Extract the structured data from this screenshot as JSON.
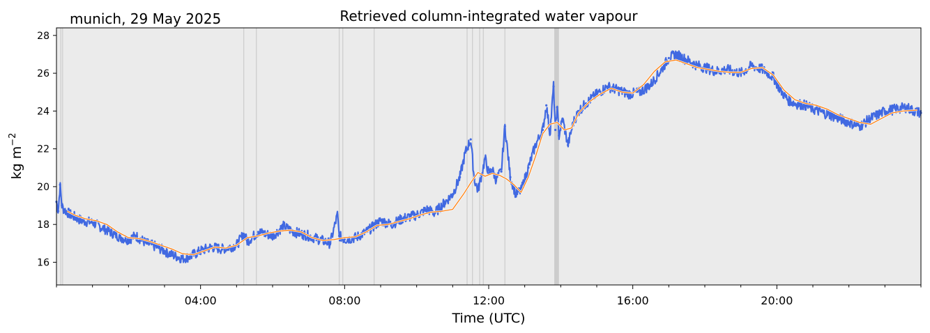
{
  "chart_data": {
    "type": "line",
    "title": "Retrieved column-integrated water vapour",
    "location_label": "munich, 29 May 2025",
    "xlabel": "Time (UTC)",
    "ylabel": "kg m",
    "ylabel_sup": "−2",
    "xlim_hours": [
      0,
      24
    ],
    "ylim": [
      14.8,
      28.4
    ],
    "y_ticks": [
      16,
      18,
      20,
      22,
      24,
      26,
      28
    ],
    "x_ticks": [
      {
        "hour": 4,
        "label": "04:00"
      },
      {
        "hour": 8,
        "label": "08:00"
      },
      {
        "hour": 12,
        "label": "12:00"
      },
      {
        "hour": 16,
        "label": "16:00"
      },
      {
        "hour": 20,
        "label": "20:00"
      }
    ],
    "grid": false,
    "colors": {
      "background": "#ebebeb",
      "raw_series": "#4169e1",
      "smoothed_series": "#ff7f0e",
      "gap_band": "#cccccc"
    },
    "gap_hours": [
      0.12,
      0.17,
      5.2,
      5.55,
      7.85,
      7.95,
      8.82,
      11.4,
      11.55,
      11.75,
      11.85,
      12.45
    ],
    "gap_band_hours": [
      13.82,
      13.95
    ],
    "series": [
      {
        "kind": "raw",
        "hours": [
          0.0,
          0.05,
          0.1,
          0.15,
          0.2,
          0.4,
          0.7,
          1.0,
          1.3,
          1.6,
          1.8,
          2.0,
          2.2,
          2.5,
          2.8,
          3.0,
          3.2,
          3.5,
          3.7,
          4.0,
          4.3,
          4.6,
          5.0,
          5.2,
          5.3,
          5.6,
          6.0,
          6.3,
          6.6,
          7.0,
          7.3,
          7.6,
          7.8,
          7.85,
          8.0,
          8.3,
          8.6,
          9.0,
          9.3,
          9.6,
          10.0,
          10.3,
          10.5,
          10.8,
          11.0,
          11.2,
          11.35,
          11.5,
          11.6,
          11.7,
          11.8,
          11.9,
          12.0,
          12.1,
          12.2,
          12.35,
          12.45,
          12.6,
          12.75,
          12.9,
          13.1,
          13.3,
          13.5,
          13.6,
          13.7,
          13.8,
          13.85,
          13.9,
          13.95,
          14.05,
          14.2,
          14.35,
          14.5,
          14.7,
          15.0,
          15.3,
          15.6,
          15.9,
          16.2,
          16.5,
          16.8,
          17.0,
          17.2,
          17.5,
          17.8,
          18.0,
          18.3,
          18.6,
          19.0,
          19.3,
          19.6,
          19.9,
          20.1,
          20.3,
          20.5,
          20.8,
          21.0,
          21.3,
          21.6,
          22.0,
          22.3,
          22.6,
          23.0,
          23.3,
          23.6,
          23.8,
          24.0
        ],
        "values": [
          19.2,
          18.7,
          20.1,
          19.0,
          18.8,
          18.5,
          18.2,
          18.1,
          17.8,
          17.5,
          17.3,
          17.2,
          17.4,
          17.0,
          16.8,
          16.6,
          16.4,
          16.2,
          16.3,
          16.6,
          16.8,
          16.7,
          16.9,
          17.5,
          17.1,
          17.6,
          17.4,
          17.9,
          17.6,
          17.4,
          17.2,
          17.0,
          18.5,
          17.4,
          17.2,
          17.3,
          17.6,
          18.2,
          18.0,
          18.3,
          18.5,
          18.8,
          18.6,
          19.2,
          19.6,
          20.5,
          21.8,
          22.5,
          20.4,
          19.8,
          20.6,
          21.5,
          20.7,
          20.9,
          20.4,
          20.8,
          23.2,
          20.5,
          19.6,
          19.8,
          21.0,
          22.2,
          23.0,
          24.3,
          22.8,
          25.3,
          23.0,
          24.2,
          22.7,
          23.6,
          22.2,
          23.4,
          24.0,
          24.4,
          24.9,
          25.3,
          25.1,
          24.9,
          25.0,
          25.4,
          26.2,
          26.8,
          27.0,
          26.7,
          26.4,
          26.3,
          26.1,
          26.2,
          26.0,
          26.4,
          26.2,
          25.8,
          25.1,
          24.6,
          24.4,
          24.3,
          24.1,
          23.9,
          23.7,
          23.4,
          23.2,
          23.6,
          24.0,
          24.1,
          24.2,
          24.0,
          23.9
        ]
      },
      {
        "kind": "smoothed",
        "hours": [
          0.3,
          0.5,
          0.8,
          1.1,
          1.4,
          1.7,
          2.0,
          2.3,
          2.6,
          2.9,
          3.2,
          3.5,
          3.8,
          4.1,
          4.4,
          4.7,
          5.0,
          5.3,
          5.6,
          5.9,
          6.2,
          6.5,
          6.8,
          7.1,
          7.4,
          7.7,
          8.0,
          8.3,
          8.6,
          8.9,
          9.2,
          9.5,
          9.8,
          10.1,
          10.4,
          10.7,
          11.0,
          11.3,
          11.5,
          11.7,
          11.9,
          12.1,
          12.3,
          12.5,
          12.7,
          12.9,
          13.1,
          13.3,
          13.5,
          13.7,
          13.9,
          14.1,
          14.3,
          14.5,
          14.8,
          15.1,
          15.4,
          15.7,
          16.0,
          16.3,
          16.6,
          16.9,
          17.2,
          17.5,
          17.8,
          18.1,
          18.4,
          18.7,
          19.0,
          19.3,
          19.6,
          19.9,
          20.2,
          20.5,
          20.8,
          21.1,
          21.4,
          21.7,
          22.0,
          22.3,
          22.6,
          22.9,
          23.2,
          23.5,
          23.9
        ],
        "values": [
          18.7,
          18.5,
          18.3,
          18.2,
          18.0,
          17.6,
          17.3,
          17.25,
          17.1,
          16.9,
          16.7,
          16.45,
          16.4,
          16.6,
          16.8,
          16.75,
          16.9,
          17.3,
          17.4,
          17.55,
          17.65,
          17.7,
          17.6,
          17.3,
          17.15,
          17.2,
          17.3,
          17.35,
          17.6,
          17.95,
          18.0,
          18.15,
          18.3,
          18.5,
          18.65,
          18.7,
          18.8,
          19.6,
          20.2,
          20.75,
          20.55,
          20.7,
          20.6,
          20.4,
          20.1,
          19.7,
          20.5,
          21.6,
          22.8,
          23.3,
          23.4,
          23.0,
          23.1,
          23.9,
          24.5,
          24.9,
          25.2,
          25.0,
          24.95,
          25.4,
          26.1,
          26.6,
          26.7,
          26.5,
          26.3,
          26.2,
          26.1,
          26.05,
          26.05,
          26.25,
          26.3,
          25.9,
          25.1,
          24.6,
          24.4,
          24.3,
          24.1,
          23.8,
          23.6,
          23.4,
          23.3,
          23.6,
          23.9,
          24.0,
          24.05
        ]
      }
    ]
  }
}
